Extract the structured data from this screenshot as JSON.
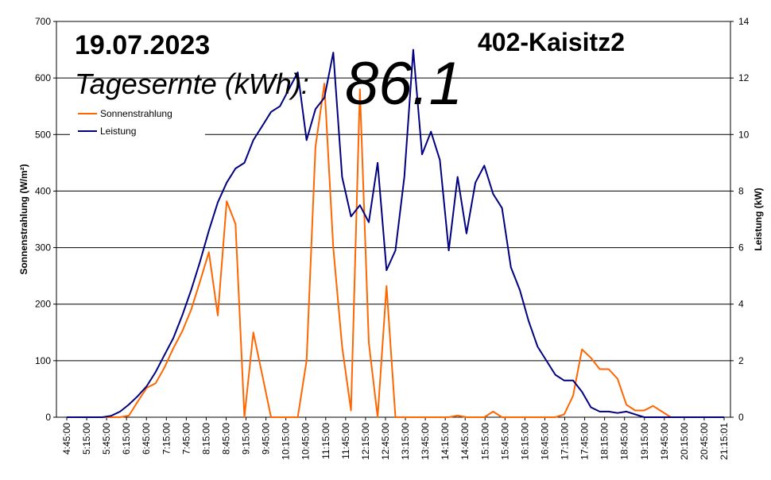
{
  "chart_data": {
    "type": "line",
    "date": "19.07.2023",
    "station": "402-Kaisitz2",
    "energy_label": "Tagesernte (kWh):",
    "energy_value": "86.1",
    "ylabel_left": "Sonnenstrahlung (W/m²)",
    "ylabel_right": "Leistung (kW)",
    "y_left_lim": [
      0,
      700
    ],
    "y_left_ticks": [
      "0",
      "100",
      "200",
      "300",
      "400",
      "500",
      "600",
      "700"
    ],
    "y_right_lim": [
      0,
      14
    ],
    "y_right_ticks": [
      "0",
      "2",
      "4",
      "6",
      "8",
      "10",
      "12",
      "14"
    ],
    "x_labels": [
      "4:45:00",
      "5:15:00",
      "5:45:00",
      "6:15:00",
      "6:45:00",
      "7:15:00",
      "7:45:00",
      "8:15:00",
      "8:45:00",
      "9:15:00",
      "9:45:00",
      "10:15:00",
      "10:45:00",
      "11:15:00",
      "11:45:00",
      "12:15:00",
      "12:45:00",
      "13:15:00",
      "13:45:00",
      "14:15:00",
      "14:45:00",
      "15:15:00",
      "15:45:00",
      "16:15:00",
      "16:45:00",
      "17:15:00",
      "17:45:00",
      "18:15:00",
      "18:45:00",
      "19:15:00",
      "19:45:00",
      "20:15:00",
      "20:45:00",
      "21:15:01"
    ],
    "grid": true,
    "legend_position": "upper-left",
    "series": [
      {
        "name": "Sonnenstrahlung",
        "axis": "left",
        "color": "#FF6600",
        "values": [
          0,
          0,
          0,
          0,
          0,
          0,
          0,
          3,
          28,
          52,
          60,
          88,
          122,
          152,
          190,
          240,
          292,
          180,
          382,
          342,
          0,
          150,
          75,
          0,
          0,
          0,
          0,
          100,
          478,
          590,
          300,
          125,
          12,
          580,
          132,
          0,
          232,
          0,
          0,
          0,
          0,
          0,
          0,
          0,
          3,
          0,
          0,
          0,
          10,
          0,
          0,
          0,
          0,
          0,
          0,
          0,
          5,
          38,
          120,
          105,
          85,
          85,
          68,
          22,
          12,
          12,
          20,
          10,
          0,
          0,
          0,
          0,
          0,
          0,
          0
        ]
      },
      {
        "name": "Leistung",
        "axis": "right",
        "color": "#000080",
        "values": [
          0,
          0,
          0,
          0,
          0,
          0.05,
          0.2,
          0.45,
          0.75,
          1.1,
          1.6,
          2.2,
          2.8,
          3.6,
          4.5,
          5.5,
          6.6,
          7.6,
          8.3,
          8.8,
          9.0,
          9.8,
          10.3,
          10.8,
          11.0,
          11.6,
          12.2,
          9.8,
          10.9,
          11.3,
          12.9,
          8.5,
          7.1,
          7.5,
          6.9,
          9.0,
          5.2,
          5.9,
          8.5,
          13.0,
          9.3,
          10.1,
          9.1,
          5.9,
          8.5,
          6.5,
          8.3,
          8.9,
          7.9,
          7.4,
          5.3,
          4.5,
          3.4,
          2.5,
          2.0,
          1.5,
          1.3,
          1.3,
          0.9,
          0.35,
          0.2,
          0.2,
          0.15,
          0.2,
          0.1,
          0,
          0,
          0,
          0,
          0,
          0,
          0,
          0,
          0,
          0
        ]
      }
    ]
  }
}
